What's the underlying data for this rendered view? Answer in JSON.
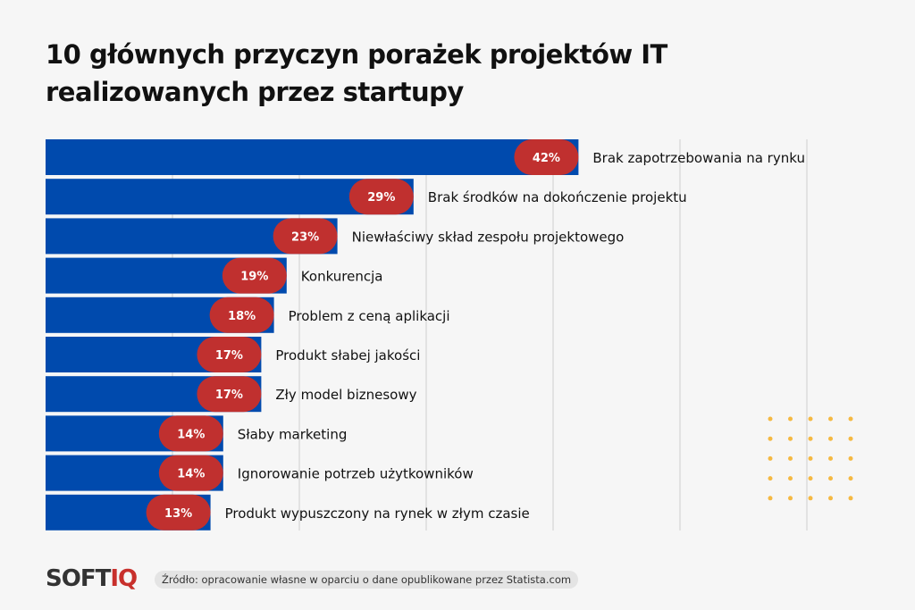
{
  "chart_data": {
    "type": "bar",
    "orientation": "horizontal",
    "title": "10 głównych przyczyn porażek projektów IT realizowanych przez startupy",
    "categories": [
      "Brak zapotrzebowania na rynku",
      "Brak środków na dokończenie projektu",
      "Niewłaściwy skład zespołu projektowego",
      "Konkurencja",
      "Problem z ceną aplikacji",
      "Produkt słabej jakości",
      "Zły model biznesowy",
      "Słaby marketing",
      "Ignorowanie potrzeb użytkowników",
      "Produkt wypuszczony na rynek w złym czasie"
    ],
    "values": [
      42,
      29,
      23,
      19,
      18,
      17,
      17,
      14,
      14,
      13
    ],
    "value_labels": [
      "42%",
      "29%",
      "23%",
      "19%",
      "18%",
      "17%",
      "17%",
      "14%",
      "14%",
      "13%"
    ],
    "unit": "%",
    "xlim": [
      0,
      60
    ],
    "grid": true,
    "colors": {
      "bar": "#004aad",
      "label_pill": "#c0302f",
      "grid": "#cfcfcf"
    }
  },
  "footer": {
    "logo_part1": "SOFT",
    "logo_part2": "IQ",
    "source": "Źródło: opracowanie własne w oparciu o dane opublikowane przez Statista.com"
  },
  "decoration": {
    "dots_color": "#f5b942"
  }
}
